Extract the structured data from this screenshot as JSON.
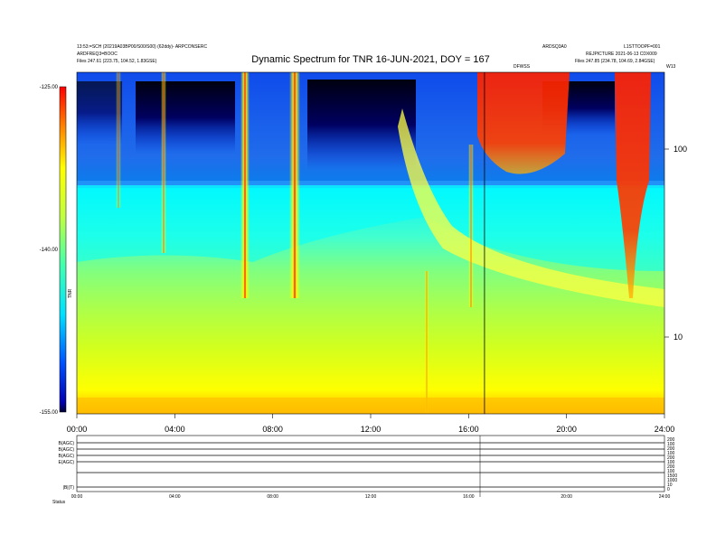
{
  "header": {
    "title": "Dynamic Spectrum for TNR 16-JUN-2021, DOY = 167",
    "left_info_1": "13:53:=SCH (20219A03BP00/S00/S00) (62ddy)- ARPCONSERC",
    "left_info_2": "ARDFREQ3=BOOC",
    "left_info_3": "Files   247.61 (223.75, 104.52, 1.83GSE)",
    "right_info_1": "ARDSQ3A0",
    "right_info_2": "L1STTOOPF=001",
    "right_info_3": "REJPICTURE  2021-06-13 CDX009",
    "right_info_4": "Files   247.85 (234.78, 104.69, 2.84GSE)",
    "event_label": "DFWSS",
    "right_top_label": "W13"
  },
  "colors": {
    "background": "#ffffff",
    "colorbar": [
      "#ffffff",
      "#00008b",
      "#0000ff",
      "#0080ff",
      "#00ffff",
      "#80ff80",
      "#ffff00",
      "#ff8000",
      "#ff0000"
    ]
  },
  "chart_data": {
    "type": "heatmap",
    "x_ticks": [
      "00:00",
      "04:00",
      "08:00",
      "12:00",
      "16:00",
      "20:00",
      "24:00"
    ],
    "x_range_hours": [
      0,
      24
    ],
    "y_ticks_right": [
      "100",
      "10"
    ],
    "y_scale": "log",
    "colorbar_ticks": [
      "-125.00",
      "-140.00",
      "-155.00"
    ],
    "colorbar_range": [
      -155,
      -125
    ],
    "colorbar_label": "TNR",
    "features": [
      {
        "name": "type III burst",
        "time_hours": 6.95,
        "intensity": "strong"
      },
      {
        "name": "type III burst",
        "time_hours": 8.9,
        "intensity": "strong"
      },
      {
        "name": "drifting band",
        "time_start_hours": 13.3,
        "time_end_hours": 24,
        "intensity": "moderate"
      },
      {
        "name": "saturated emission",
        "time_start_hours": 16.6,
        "time_end_hours": 18.6,
        "intensity": "strong"
      },
      {
        "name": "saturated emission",
        "time_start_hours": 21.9,
        "time_end_hours": 23.2,
        "intensity": "strong"
      }
    ],
    "event_marker_hours": 16.65,
    "lower_panel": {
      "row_labels": [
        "B(AGC)",
        "B(AGC)",
        "B(AGC)",
        "E(AGC)",
        "",
        "|B|(T)"
      ],
      "right_labels": [
        "200",
        "100",
        "200",
        "100",
        "200",
        "100",
        "200",
        "100",
        "1500",
        "1000",
        "10",
        "0"
      ],
      "x_ticks": [
        "00:00",
        "04:00",
        "08:00",
        "12:00",
        "16:00",
        "20:00",
        "24:00"
      ],
      "status_label": "Status"
    }
  }
}
